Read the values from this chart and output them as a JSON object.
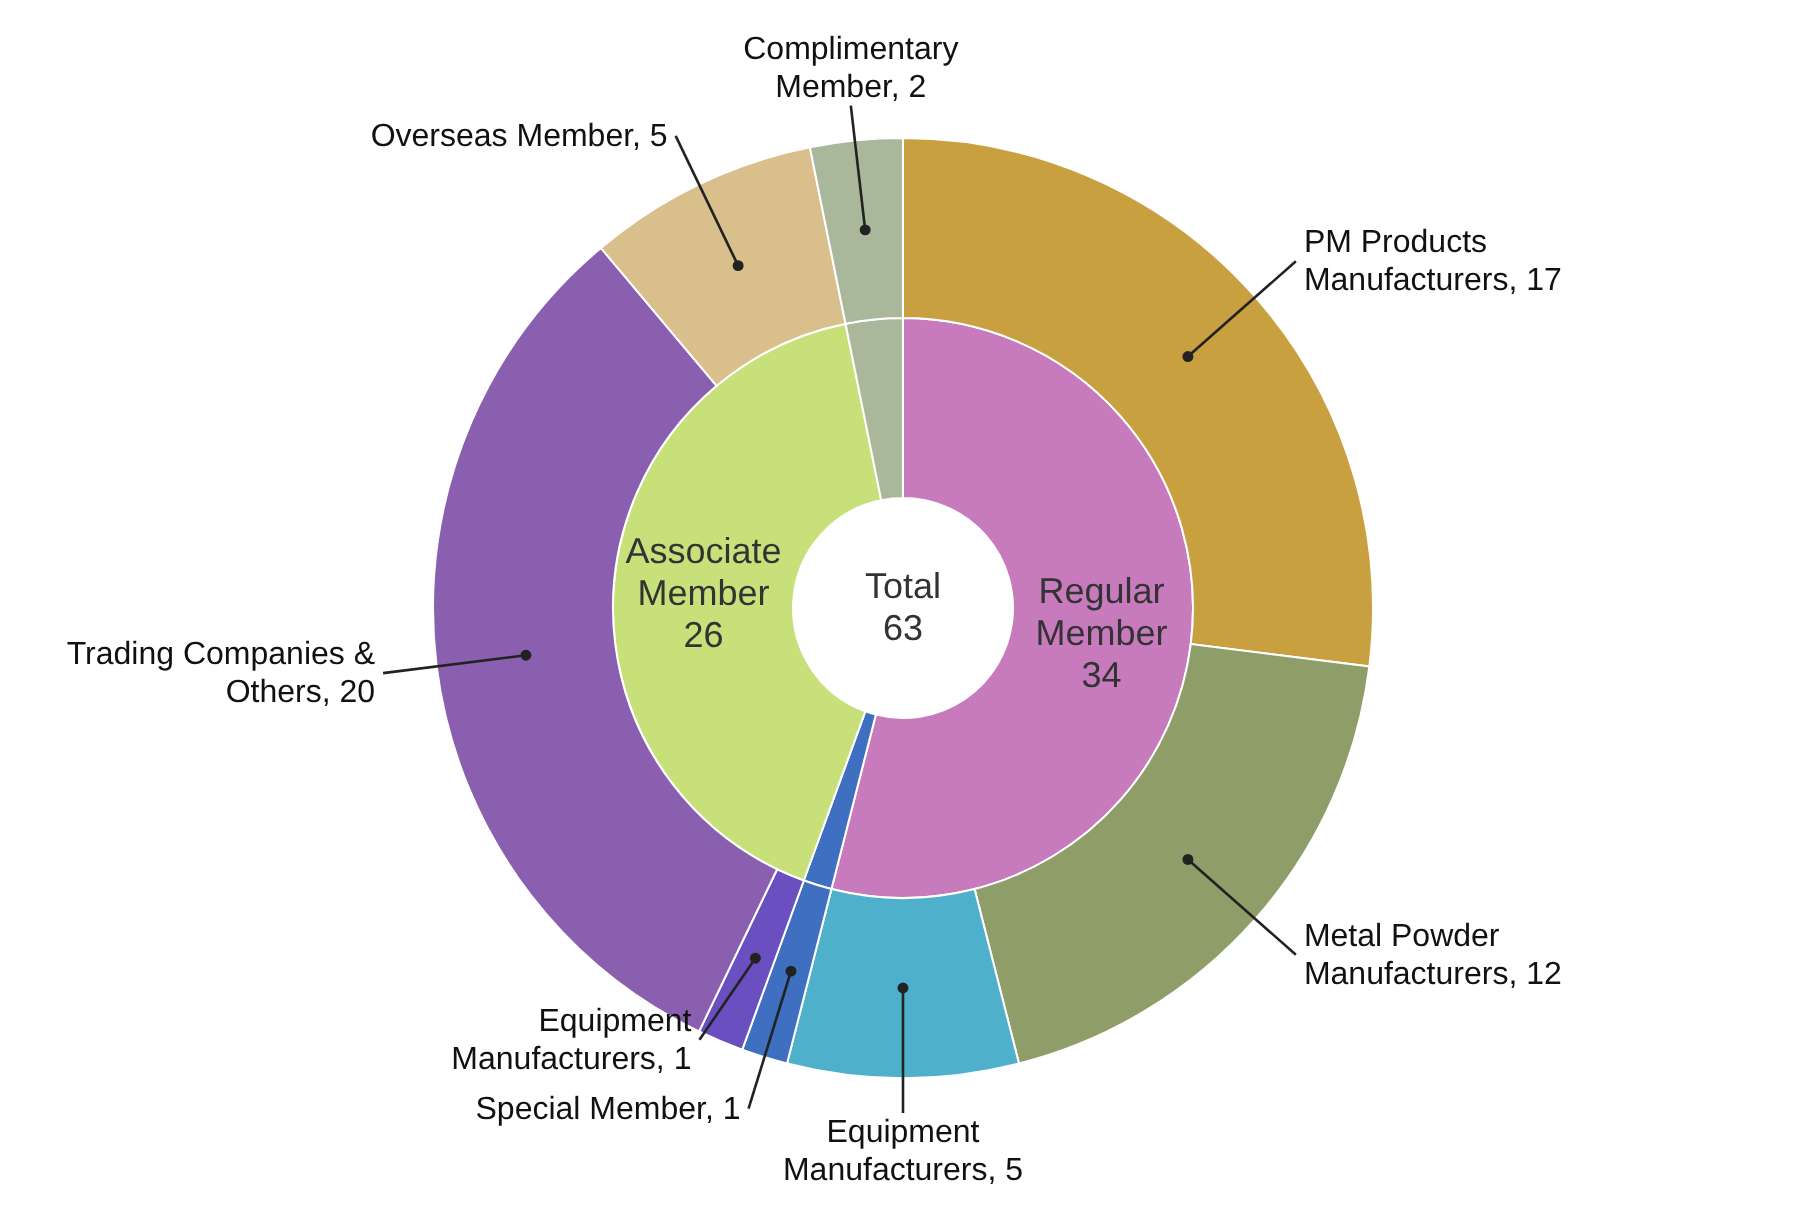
{
  "chart_data": [
    {
      "type": "donut",
      "categories": [
        "Regular Member",
        null,
        "Associate Member",
        null
      ],
      "values": [
        34,
        1,
        26,
        2
      ],
      "colors": [
        "#c77bbd",
        "#3e6fc0",
        "#c8e07a",
        "#a9b89a"
      ],
      "value_labels": [
        "34",
        null,
        "26",
        null
      ],
      "annotations": [
        "Total 63"
      ]
    },
    {
      "type": "donut",
      "categories": [
        "PM Products Manufacturers, 17",
        "Metal Powder Manufacturers, 12",
        "Equipment Manufacturers, 5",
        "Special Member, 1",
        "Equipment Manufacturers, 1",
        "Trading Companies & Others, 20",
        "Overseas Member, 5",
        "Complimentary Member, 2"
      ],
      "values": [
        17,
        12,
        5,
        1,
        1,
        20,
        5,
        2
      ],
      "colors": [
        "#c9a040",
        "#8f9e68",
        "#4fb0cc",
        "#3e6fc0",
        "#6a4fc0",
        "#8a5fb0",
        "#d8bf8c",
        "#a9b89a"
      ]
    }
  ]
}
